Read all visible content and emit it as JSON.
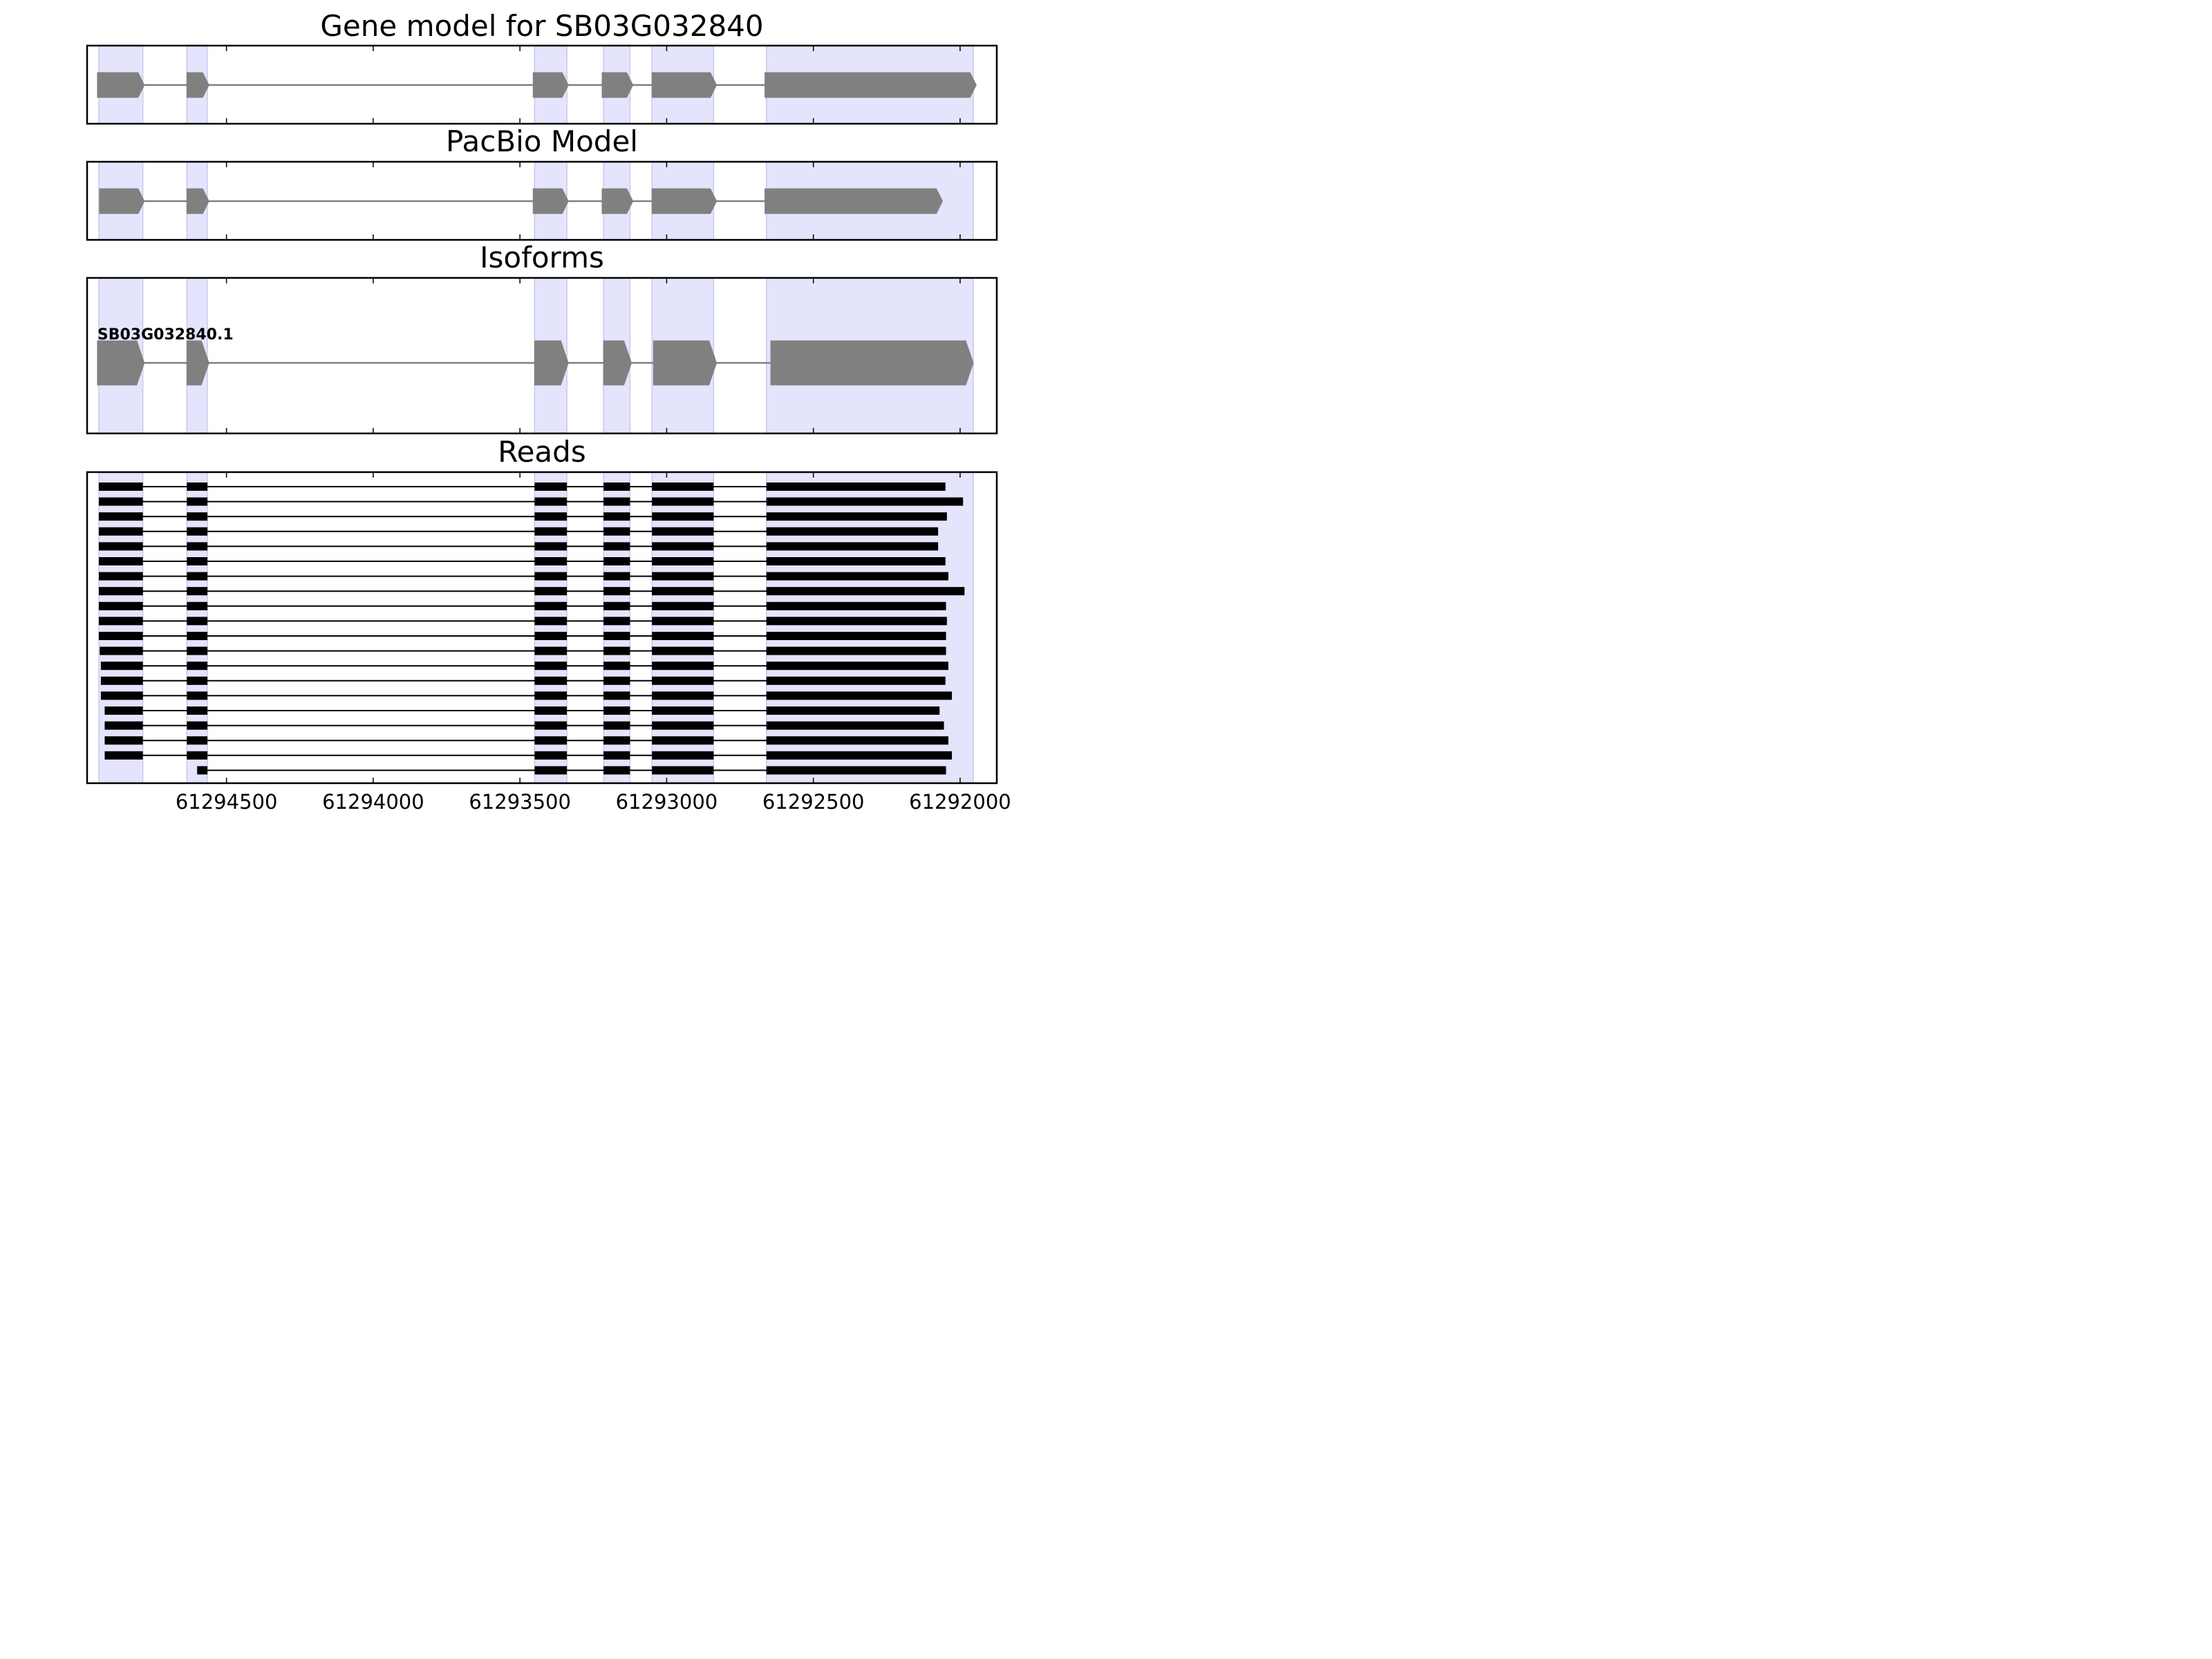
{
  "chart_data": {
    "type": "gene-structure",
    "x_reversed": true,
    "xlim": [
      61294975,
      61291875
    ],
    "x_ticks": [
      61294500,
      61294000,
      61293500,
      61293000,
      61292500,
      61292000
    ],
    "x_tick_labels": [
      "61294500",
      "61294000",
      "61293500",
      "61293000",
      "61292500",
      "61292000"
    ],
    "shaded_exons": [
      [
        61294935,
        61294785
      ],
      [
        61294635,
        61294565
      ],
      [
        61293450,
        61293340
      ],
      [
        61293215,
        61293125
      ],
      [
        61293050,
        61292840
      ],
      [
        61292660,
        61291955
      ]
    ],
    "panels": [
      {
        "title": "Gene model for SB03G032840",
        "style": "arrow-thin",
        "exons": [
          [
            61294940,
            61294780
          ],
          [
            61294635,
            61294560
          ],
          [
            61293455,
            61293335
          ],
          [
            61293220,
            61293115
          ],
          [
            61293050,
            61292830
          ],
          [
            61292665,
            61291945
          ]
        ]
      },
      {
        "title": "PacBio Model",
        "style": "arrow-thin",
        "exons": [
          [
            61294933,
            61294780
          ],
          [
            61294635,
            61294560
          ],
          [
            61293455,
            61293335
          ],
          [
            61293220,
            61293115
          ],
          [
            61293050,
            61292830
          ],
          [
            61292665,
            61292060
          ]
        ]
      },
      {
        "title": "Isoforms",
        "style": "arrow-thick",
        "isoform_label": "SB03G032840.1",
        "exons": [
          [
            61294940,
            61294780
          ],
          [
            61294635,
            61294560
          ],
          [
            61293450,
            61293335
          ],
          [
            61293215,
            61293120
          ],
          [
            61293045,
            61292830
          ],
          [
            61292645,
            61291955
          ]
        ]
      },
      {
        "title": "Reads",
        "style": "reads",
        "reads": [
          {
            "start": 61294940,
            "end": 61292050
          },
          {
            "start": 61294940,
            "end": 61291990
          },
          {
            "start": 61294938,
            "end": 61292045
          },
          {
            "start": 61294935,
            "end": 61292075
          },
          {
            "start": 61294935,
            "end": 61292075
          },
          {
            "start": 61294935,
            "end": 61292050
          },
          {
            "start": 61294935,
            "end": 61292040
          },
          {
            "start": 61294935,
            "end": 61291985
          },
          {
            "start": 61294935,
            "end": 61292048
          },
          {
            "start": 61294935,
            "end": 61292045
          },
          {
            "start": 61294935,
            "end": 61292048
          },
          {
            "start": 61294932,
            "end": 61292048
          },
          {
            "start": 61294928,
            "end": 61292040
          },
          {
            "start": 61294928,
            "end": 61292050
          },
          {
            "start": 61294928,
            "end": 61292028
          },
          {
            "start": 61294915,
            "end": 61292070
          },
          {
            "start": 61294915,
            "end": 61292055
          },
          {
            "start": 61294915,
            "end": 61292040
          },
          {
            "start": 61294915,
            "end": 61292028
          },
          {
            "start": 61294600,
            "end": 61292048
          }
        ]
      }
    ]
  }
}
